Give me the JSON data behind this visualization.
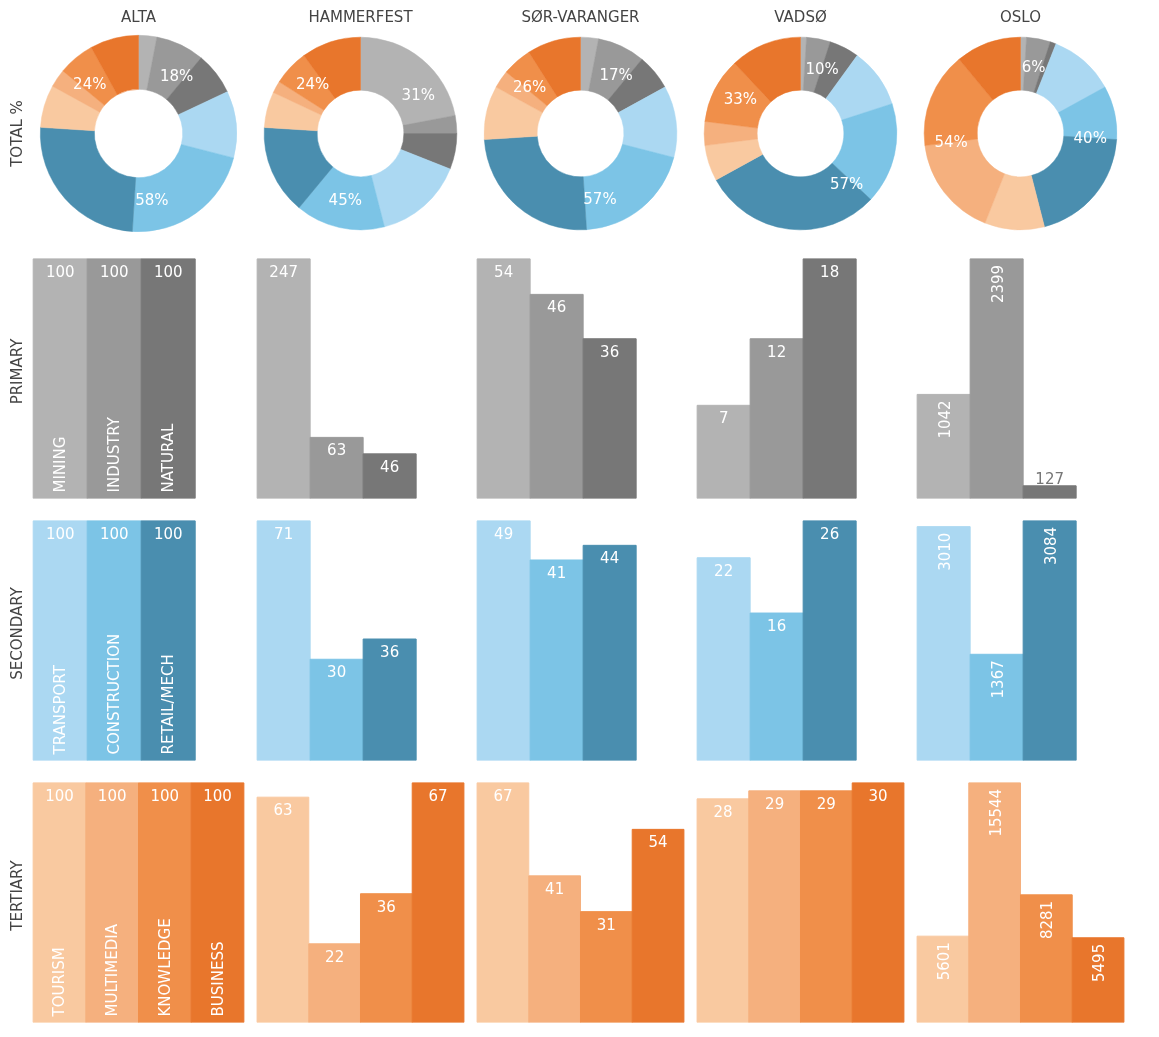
{
  "chart_data": [
    {
      "type": "donut",
      "title": "ALTA",
      "ylabel": "TOTAL %",
      "categories": [
        null,
        null,
        null,
        null,
        null,
        null,
        null,
        null,
        null,
        null
      ],
      "values": [
        3,
        8,
        7,
        11,
        22,
        25,
        7,
        3,
        6,
        8
      ],
      "colors": [
        "#b3b3b3",
        "#999999",
        "#777777",
        "#abd8f2",
        "#7cc4e6",
        "#4a8eaf",
        "#f9c9a0",
        "#f5b07e",
        "#f08f4a",
        "#e8762c"
      ],
      "annotations": [
        "18%",
        "58%",
        "24%"
      ]
    },
    {
      "type": "donut",
      "title": "HAMMERFEST",
      "categories": [
        null,
        null,
        null,
        null,
        null,
        null,
        null,
        null,
        null,
        null
      ],
      "values": [
        22,
        3,
        6,
        15,
        15,
        15,
        6,
        2,
        6,
        10
      ],
      "colors": [
        "#b3b3b3",
        "#999999",
        "#777777",
        "#abd8f2",
        "#7cc4e6",
        "#4a8eaf",
        "#f9c9a0",
        "#f5b07e",
        "#f08f4a",
        "#e8762c"
      ],
      "annotations": [
        "31%",
        "45%",
        "24%"
      ]
    },
    {
      "type": "donut",
      "title": "SØR-VARANGER",
      "categories": [
        null,
        null,
        null,
        null,
        null,
        null,
        null,
        null,
        null,
        null
      ],
      "values": [
        3,
        8,
        6,
        12,
        20,
        25,
        9,
        3,
        5,
        9
      ],
      "colors": [
        "#b3b3b3",
        "#999999",
        "#777777",
        "#abd8f2",
        "#7cc4e6",
        "#4a8eaf",
        "#f9c9a0",
        "#f5b07e",
        "#f08f4a",
        "#e8762c"
      ],
      "annotations": [
        "17%",
        "57%",
        "26%"
      ]
    },
    {
      "type": "donut",
      "title": "VADSØ",
      "categories": [
        null,
        null,
        null,
        null,
        null,
        null,
        null,
        null,
        null,
        null
      ],
      "values": [
        1,
        4,
        5,
        10,
        17,
        30,
        6,
        4,
        11,
        12
      ],
      "colors": [
        "#b3b3b3",
        "#999999",
        "#777777",
        "#abd8f2",
        "#7cc4e6",
        "#4a8eaf",
        "#f9c9a0",
        "#f5b07e",
        "#f08f4a",
        "#e8762c"
      ],
      "annotations": [
        "10%",
        "57%",
        "33%"
      ]
    },
    {
      "type": "donut",
      "title": "OSLO",
      "categories": [
        null,
        null,
        null,
        null,
        null,
        null,
        null,
        null,
        null,
        null
      ],
      "values": [
        1,
        4,
        1,
        11,
        9,
        20,
        10,
        17,
        16,
        11
      ],
      "colors": [
        "#b3b3b3",
        "#999999",
        "#777777",
        "#abd8f2",
        "#7cc4e6",
        "#4a8eaf",
        "#f9c9a0",
        "#f5b07e",
        "#f08f4a",
        "#e8762c"
      ],
      "annotations": [
        "6%",
        "40%",
        "54%"
      ]
    },
    {
      "type": "bar",
      "ylabel": "PRIMARY",
      "categories": [
        "MINING",
        "INDUSTRY",
        "NATURAL"
      ],
      "values": [
        100,
        100,
        100
      ],
      "colors": [
        "#b3b3b3",
        "#999999",
        "#777777"
      ],
      "data_labels": true,
      "tick_labels": false
    },
    {
      "type": "bar",
      "categories": [
        null,
        null,
        null
      ],
      "values": [
        247,
        63,
        46
      ],
      "colors": [
        "#b3b3b3",
        "#999999",
        "#777777"
      ],
      "data_labels": true,
      "tick_labels": false
    },
    {
      "type": "bar",
      "categories": [
        null,
        null,
        null
      ],
      "values": [
        54,
        46,
        36
      ],
      "colors": [
        "#b3b3b3",
        "#999999",
        "#777777"
      ],
      "data_labels": true,
      "tick_labels": false
    },
    {
      "type": "bar",
      "categories": [
        null,
        null,
        null
      ],
      "values": [
        7,
        12,
        18
      ],
      "colors": [
        "#b3b3b3",
        "#999999",
        "#777777"
      ],
      "data_labels": true,
      "tick_labels": false
    },
    {
      "type": "bar",
      "categories": [
        null,
        null,
        null
      ],
      "values": [
        1042,
        2399,
        127
      ],
      "data_labels": true,
      "colors": [
        "#b3b3b3",
        "#999999",
        "#777777"
      ],
      "tick_labels": false
    },
    {
      "type": "bar",
      "ylabel": "SECONDARY",
      "categories": [
        "TRANSPORT",
        "CONSTRUCTION",
        "RETAIL/MECH"
      ],
      "values": [
        100,
        100,
        100
      ],
      "colors": [
        "#abd8f2",
        "#7cc4e6",
        "#4a8eaf"
      ],
      "data_labels": true,
      "tick_labels": false
    },
    {
      "type": "bar",
      "categories": [
        null,
        null,
        null
      ],
      "values": [
        71,
        30,
        36
      ],
      "colors": [
        "#abd8f2",
        "#7cc4e6",
        "#4a8eaf"
      ],
      "data_labels": true,
      "tick_labels": false
    },
    {
      "type": "bar",
      "categories": [
        null,
        null,
        null
      ],
      "values": [
        49,
        41,
        44
      ],
      "colors": [
        "#abd8f2",
        "#7cc4e6",
        "#4a8eaf"
      ],
      "data_labels": true,
      "tick_labels": false
    },
    {
      "type": "bar",
      "categories": [
        null,
        null,
        null
      ],
      "values": [
        22,
        16,
        26
      ],
      "colors": [
        "#abd8f2",
        "#7cc4e6",
        "#4a8eaf"
      ],
      "data_labels": true,
      "tick_labels": false
    },
    {
      "type": "bar",
      "categories": [
        null,
        null,
        null
      ],
      "values": [
        3010,
        1367,
        3084
      ],
      "colors": [
        "#abd8f2",
        "#7cc4e6",
        "#4a8eaf"
      ],
      "data_labels": true,
      "tick_labels": false
    },
    {
      "type": "bar",
      "ylabel": "TERTIARY",
      "categories": [
        "TOURISM",
        "MULTIMEDIA",
        "KNOWLEDGE",
        "BUSINESS"
      ],
      "values": [
        100,
        100,
        100,
        100
      ],
      "colors": [
        "#f9c9a0",
        "#f5b07e",
        "#f08f4a",
        "#e8762c"
      ],
      "data_labels": true,
      "tick_labels": false
    },
    {
      "type": "bar",
      "categories": [
        null,
        null,
        null,
        null
      ],
      "values": [
        63,
        22,
        36,
        67
      ],
      "colors": [
        "#f9c9a0",
        "#f5b07e",
        "#f08f4a",
        "#e8762c"
      ],
      "data_labels": true,
      "tick_labels": false
    },
    {
      "type": "bar",
      "categories": [
        null,
        null,
        null,
        null
      ],
      "values": [
        67,
        41,
        31,
        54
      ],
      "colors": [
        "#f9c9a0",
        "#f5b07e",
        "#f08f4a",
        "#e8762c"
      ],
      "data_labels": true,
      "tick_labels": false
    },
    {
      "type": "bar",
      "categories": [
        null,
        null,
        null,
        null
      ],
      "values": [
        28,
        29,
        29,
        30
      ],
      "colors": [
        "#f9c9a0",
        "#f5b07e",
        "#f08f4a",
        "#e8762c"
      ],
      "data_labels": true,
      "tick_labels": false
    },
    {
      "type": "bar",
      "categories": [
        null,
        null,
        null,
        null
      ],
      "values": [
        5601,
        15544,
        8281,
        5495
      ],
      "colors": [
        "#f9c9a0",
        "#f5b07e",
        "#f08f4a",
        "#e8762c"
      ],
      "data_labels": true,
      "tick_labels": false
    }
  ]
}
